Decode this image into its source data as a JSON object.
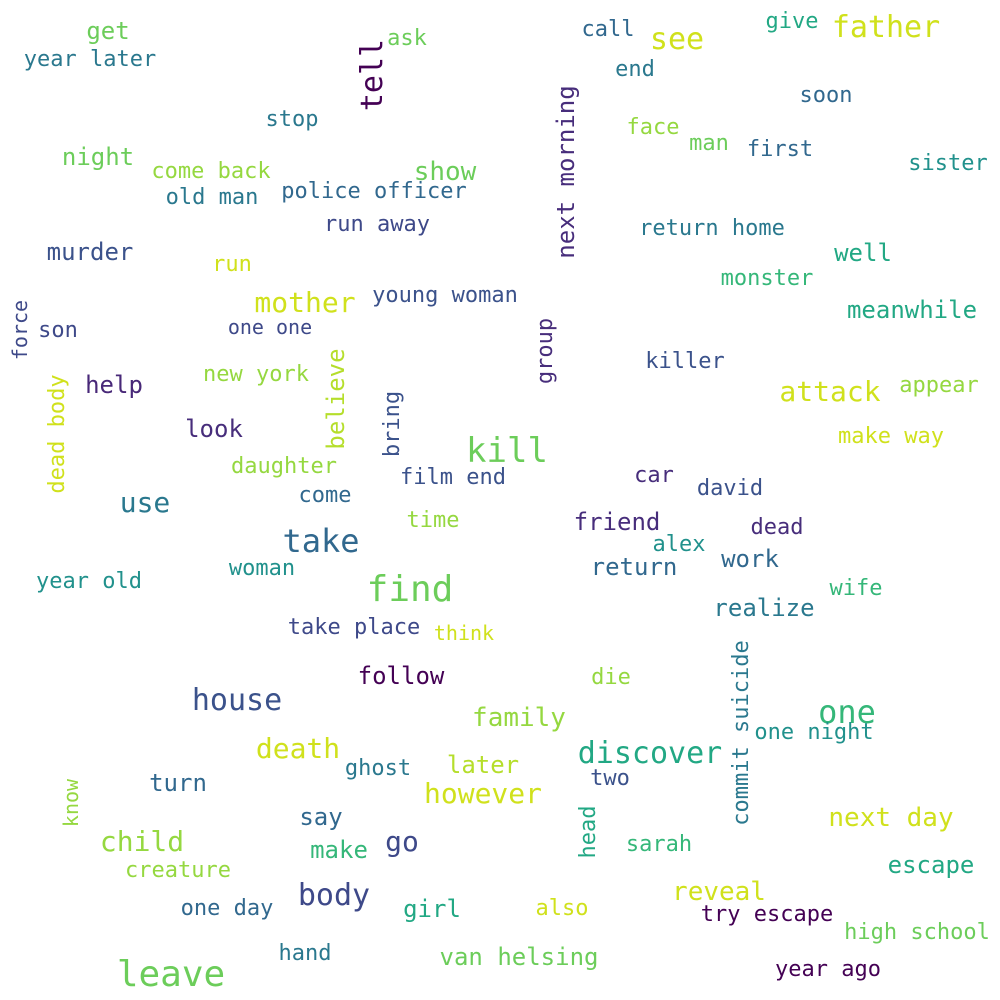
{
  "words": [
    {
      "text": "year later",
      "color": "#2a788e"
    },
    {
      "text": "get",
      "color": "#6ccd5a"
    },
    {
      "text": "tell",
      "color": "#440154"
    },
    {
      "text": "ask",
      "color": "#6ccd5a"
    },
    {
      "text": "call",
      "color": "#31688e"
    },
    {
      "text": "see",
      "color": "#d0e11c"
    },
    {
      "text": "give",
      "color": "#22a884"
    },
    {
      "text": "father",
      "color": "#d0e11c"
    },
    {
      "text": "end",
      "color": "#2a788e"
    },
    {
      "text": "next morning",
      "color": "#472d7b"
    },
    {
      "text": "soon",
      "color": "#31688e"
    },
    {
      "text": "stop",
      "color": "#2a788e"
    },
    {
      "text": "face",
      "color": "#95d840"
    },
    {
      "text": "man",
      "color": "#6ccd5a"
    },
    {
      "text": "first",
      "color": "#31688e"
    },
    {
      "text": "night",
      "color": "#6ccd5a"
    },
    {
      "text": "come back",
      "color": "#95d840"
    },
    {
      "text": "show",
      "color": "#6ccd5a"
    },
    {
      "text": "sister",
      "color": "#21918c"
    },
    {
      "text": "old man",
      "color": "#2a788e"
    },
    {
      "text": "police officer",
      "color": "#31688e"
    },
    {
      "text": "run away",
      "color": "#3e4989"
    },
    {
      "text": "return home",
      "color": "#2a788e"
    },
    {
      "text": "murder",
      "color": "#3b528b"
    },
    {
      "text": "well",
      "color": "#22a884"
    },
    {
      "text": "run",
      "color": "#d0e11c"
    },
    {
      "text": "monster",
      "color": "#35b779"
    },
    {
      "text": "mother",
      "color": "#d0e11c"
    },
    {
      "text": "young woman",
      "color": "#3b528b"
    },
    {
      "text": "meanwhile",
      "color": "#22a884"
    },
    {
      "text": "force",
      "color": "#3e4989"
    },
    {
      "text": "son",
      "color": "#3e4989"
    },
    {
      "text": "one one",
      "color": "#3e4989"
    },
    {
      "text": "group",
      "color": "#472d7b"
    },
    {
      "text": "killer",
      "color": "#3b528b"
    },
    {
      "text": "help",
      "color": "#482878"
    },
    {
      "text": "new york",
      "color": "#95d840"
    },
    {
      "text": "believe",
      "color": "#b5de2b"
    },
    {
      "text": "attack",
      "color": "#d0e11c"
    },
    {
      "text": "appear",
      "color": "#95d840"
    },
    {
      "text": "dead body",
      "color": "#d0e11c"
    },
    {
      "text": "bring",
      "color": "#3b528b"
    },
    {
      "text": "look",
      "color": "#472d7b"
    },
    {
      "text": "kill",
      "color": "#6ccd5a"
    },
    {
      "text": "make way",
      "color": "#d0e11c"
    },
    {
      "text": "daughter",
      "color": "#95d840"
    },
    {
      "text": "film end",
      "color": "#3b528b"
    },
    {
      "text": "car",
      "color": "#472d7b"
    },
    {
      "text": "david",
      "color": "#3b528b"
    },
    {
      "text": "come",
      "color": "#31688e"
    },
    {
      "text": "use",
      "color": "#2a788e"
    },
    {
      "text": "take",
      "color": "#31688e"
    },
    {
      "text": "time",
      "color": "#95d840"
    },
    {
      "text": "friend",
      "color": "#472d7b"
    },
    {
      "text": "dead",
      "color": "#472d7b"
    },
    {
      "text": "alex",
      "color": "#21918c"
    },
    {
      "text": "work",
      "color": "#31688e"
    },
    {
      "text": "woman",
      "color": "#21918c"
    },
    {
      "text": "return",
      "color": "#31688e"
    },
    {
      "text": "year old",
      "color": "#21918c"
    },
    {
      "text": "find",
      "color": "#6ccd5a"
    },
    {
      "text": "wife",
      "color": "#35b779"
    },
    {
      "text": "realize",
      "color": "#2a788e"
    },
    {
      "text": "take place",
      "color": "#3e4989"
    },
    {
      "text": "think",
      "color": "#d0e11c"
    },
    {
      "text": "commit suicide",
      "color": "#2a788e"
    },
    {
      "text": "follow",
      "color": "#440154"
    },
    {
      "text": "die",
      "color": "#95d840"
    },
    {
      "text": "house",
      "color": "#3b528b"
    },
    {
      "text": "family",
      "color": "#95d840"
    },
    {
      "text": "one",
      "color": "#35b779"
    },
    {
      "text": "one night",
      "color": "#21918c"
    },
    {
      "text": "death",
      "color": "#d0e11c"
    },
    {
      "text": "discover",
      "color": "#22a884"
    },
    {
      "text": "ghost",
      "color": "#2a788e"
    },
    {
      "text": "later",
      "color": "#b5de2b"
    },
    {
      "text": "two",
      "color": "#3b528b"
    },
    {
      "text": "turn",
      "color": "#31688e"
    },
    {
      "text": "however",
      "color": "#d0e11c"
    },
    {
      "text": "know",
      "color": "#95d840"
    },
    {
      "text": "next day",
      "color": "#d0e11c"
    },
    {
      "text": "say",
      "color": "#31688e"
    },
    {
      "text": "child",
      "color": "#95d840"
    },
    {
      "text": "head",
      "color": "#22a884"
    },
    {
      "text": "go",
      "color": "#3e4989"
    },
    {
      "text": "make",
      "color": "#35b779"
    },
    {
      "text": "sarah",
      "color": "#35b779"
    },
    {
      "text": "creature",
      "color": "#95d840"
    },
    {
      "text": "escape",
      "color": "#22a884"
    },
    {
      "text": "body",
      "color": "#3e4989"
    },
    {
      "text": "reveal",
      "color": "#d0e11c"
    },
    {
      "text": "one day",
      "color": "#31688e"
    },
    {
      "text": "girl",
      "color": "#22a884"
    },
    {
      "text": "also",
      "color": "#d0e11c"
    },
    {
      "text": "try escape",
      "color": "#440154"
    },
    {
      "text": "high school",
      "color": "#6ccd5a"
    },
    {
      "text": "hand",
      "color": "#2a788e"
    },
    {
      "text": "van helsing",
      "color": "#6ccd5a"
    },
    {
      "text": "leave",
      "color": "#6ccd5a"
    },
    {
      "text": "year ago",
      "color": "#440154"
    }
  ]
}
